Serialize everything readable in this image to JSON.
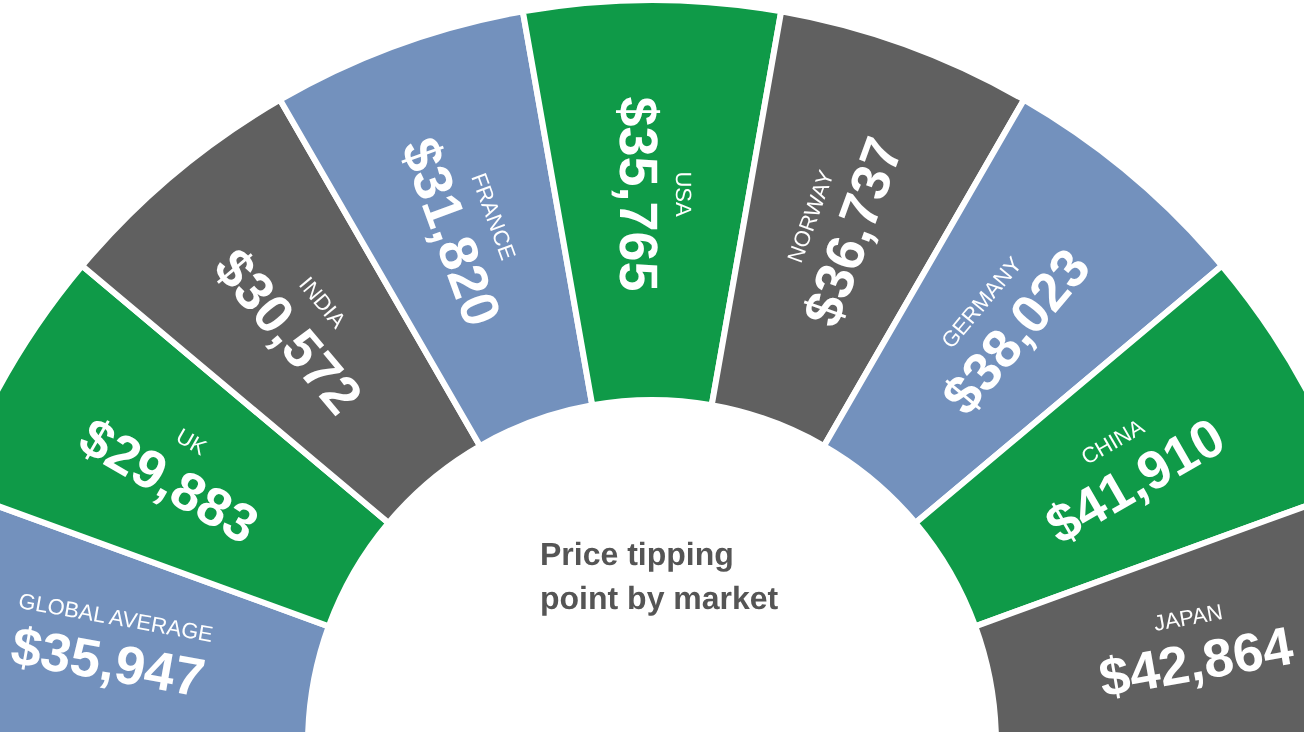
{
  "chart_data": {
    "type": "other",
    "title": "Price tipping\npoint by market",
    "categories": [
      "GLOBAL AVERAGE",
      "UK",
      "INDIA",
      "FRANCE",
      "USA",
      "NORWAY",
      "GERMANY",
      "CHINA",
      "JAPAN"
    ],
    "values": [
      35947,
      29883,
      30572,
      31820,
      35765,
      36737,
      38023,
      41910,
      42864
    ],
    "value_labels": [
      "$35,947",
      "$29,883",
      "$30,572",
      "$31,820",
      "$35,765",
      "$36,737",
      "$38,023",
      "$41,910",
      "$42,864"
    ],
    "colors": [
      "#7391bd",
      "#0f9a48",
      "#606060",
      "#7391bd",
      "#0f9a48",
      "#606060",
      "#7391bd",
      "#0f9a48",
      "#606060"
    ],
    "legend": false
  }
}
